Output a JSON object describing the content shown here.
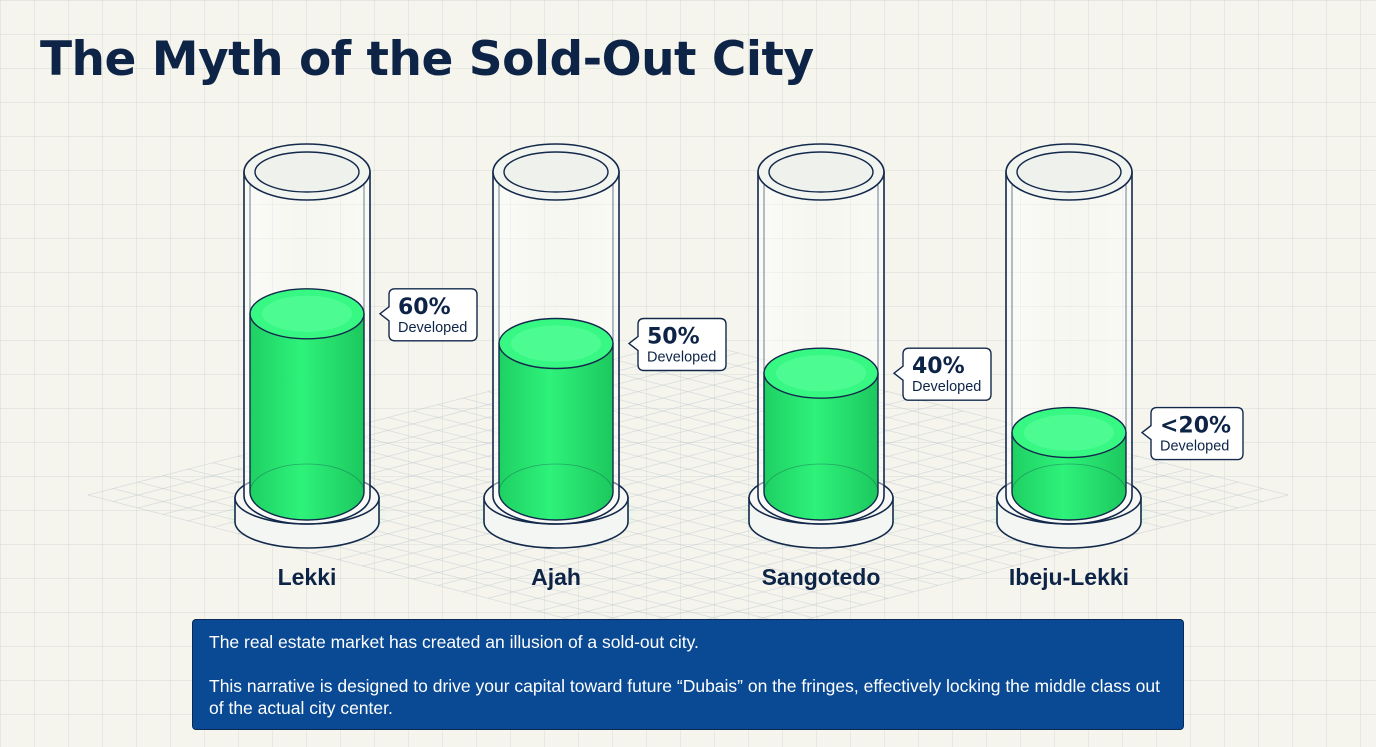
{
  "chart_data": {
    "type": "bar",
    "title": "The Myth of the Sold-Out City",
    "categories": [
      "Lekki",
      "Ajah",
      "Sangotedo",
      "Ibeju-Lekki"
    ],
    "values": [
      60,
      50,
      40,
      20
    ],
    "value_labels": [
      "60%",
      "50%",
      "40%",
      "<20%"
    ],
    "value_caption": "Developed",
    "ylim": [
      0,
      100
    ],
    "fill_color": "#22e06a"
  },
  "note": {
    "line1": "The real estate market has created an illusion of a sold-out city.",
    "line2": "This narrative is designed to drive your capital toward future “Dubais” on the fringes, effectively locking the middle class out of the actual city center."
  }
}
